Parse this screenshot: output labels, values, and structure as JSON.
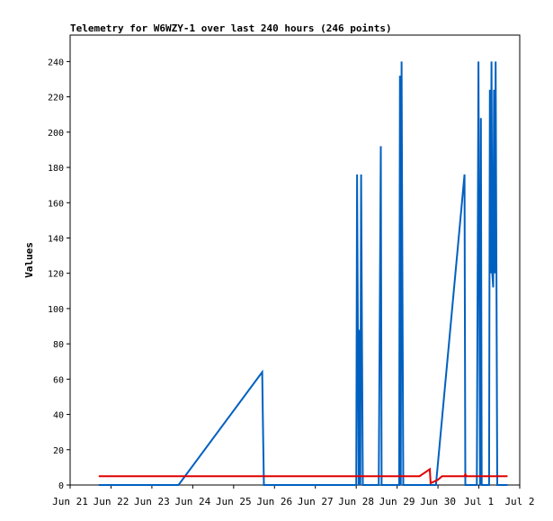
{
  "chart_data": {
    "type": "line",
    "title": "Telemetry for W6WZY-1 over last 240 hours (246 points)",
    "xlabel": "",
    "ylabel": "Values",
    "x_tick_labels": [
      "Jun 21",
      "Jun 22",
      "Jun 23",
      "Jun 24",
      "Jun 25",
      "Jun 26",
      "Jun 27",
      "Jun 28",
      "Jun 29",
      "Jun 30",
      "Jul 1",
      "Jul 2"
    ],
    "x_unit": "days",
    "xlim": [
      0,
      11
    ],
    "ylim": [
      0,
      255
    ],
    "y_ticks": [
      0,
      20,
      40,
      60,
      80,
      100,
      120,
      140,
      160,
      180,
      200,
      220,
      240
    ],
    "grid": false,
    "series": [
      {
        "color": "#0060c0",
        "points": [
          [
            0.7,
            0
          ],
          [
            2.65,
            0
          ],
          [
            4.7,
            64
          ],
          [
            4.72,
            32
          ],
          [
            4.74,
            0
          ],
          [
            7.0,
            0
          ],
          [
            7.02,
            176
          ],
          [
            7.04,
            88
          ],
          [
            7.06,
            0
          ],
          [
            7.08,
            88
          ],
          [
            7.1,
            0
          ],
          [
            7.12,
            176
          ],
          [
            7.14,
            88
          ],
          [
            7.16,
            0
          ],
          [
            7.55,
            0
          ],
          [
            7.6,
            192
          ],
          [
            7.62,
            0
          ],
          [
            8.05,
            0
          ],
          [
            8.07,
            232
          ],
          [
            8.09,
            0
          ],
          [
            8.11,
            240
          ],
          [
            8.13,
            120
          ],
          [
            8.15,
            0
          ],
          [
            8.95,
            0
          ],
          [
            9.65,
            176
          ],
          [
            9.67,
            0
          ],
          [
            9.95,
            0
          ],
          [
            9.97,
            120
          ],
          [
            9.99,
            240
          ],
          [
            10.01,
            120
          ],
          [
            10.03,
            0
          ],
          [
            10.05,
            208
          ],
          [
            10.07,
            0
          ],
          [
            10.25,
            0
          ],
          [
            10.27,
            224
          ],
          [
            10.29,
            120
          ],
          [
            10.31,
            240
          ],
          [
            10.33,
            120
          ],
          [
            10.35,
            112
          ],
          [
            10.37,
            224
          ],
          [
            10.39,
            120
          ],
          [
            10.41,
            240
          ],
          [
            10.43,
            120
          ],
          [
            10.45,
            0
          ],
          [
            10.7,
            0
          ]
        ]
      },
      {
        "color": "#e00000",
        "points": [
          [
            0.7,
            5
          ],
          [
            8.55,
            5
          ],
          [
            8.8,
            9
          ],
          [
            8.82,
            1
          ],
          [
            9.0,
            3
          ],
          [
            9.1,
            5
          ],
          [
            9.65,
            5
          ],
          [
            9.67,
            6
          ],
          [
            9.7,
            5
          ],
          [
            10.7,
            5
          ]
        ]
      }
    ]
  }
}
